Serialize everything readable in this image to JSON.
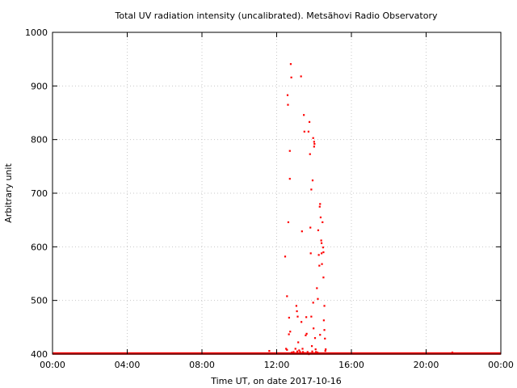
{
  "chart_data": {
    "type": "scatter",
    "title": "Total UV radiation intensity (uncalibrated). Metsähovi Radio Observatory",
    "xlabel": "Time UT, on date 2017-10-16",
    "ylabel": "Arbitrary unit",
    "x_unit": "hours UT",
    "xlim": [
      0,
      24
    ],
    "ylim": [
      400,
      1000
    ],
    "x_ticks": [
      0,
      4,
      8,
      12,
      16,
      20,
      24
    ],
    "x_tick_labels": [
      "00:00",
      "04:00",
      "08:00",
      "12:00",
      "16:00",
      "20:00",
      "00:00"
    ],
    "y_ticks": [
      400,
      500,
      600,
      700,
      800,
      900,
      1000
    ],
    "y_tick_labels": [
      "400",
      "500",
      "600",
      "700",
      "800",
      "900",
      "1000"
    ],
    "grid": true,
    "marker_color": "#ff0000",
    "baseline": {
      "x_start": 0,
      "x_end": 24,
      "y": 401
    },
    "points": [
      [
        11.6,
        406
      ],
      [
        12.45,
        582
      ],
      [
        12.5,
        410
      ],
      [
        12.55,
        508
      ],
      [
        12.55,
        408
      ],
      [
        12.58,
        883
      ],
      [
        12.6,
        865
      ],
      [
        12.62,
        646
      ],
      [
        12.65,
        437
      ],
      [
        12.66,
        468
      ],
      [
        12.7,
        779
      ],
      [
        12.7,
        727
      ],
      [
        12.72,
        442
      ],
      [
        12.75,
        941
      ],
      [
        12.78,
        916
      ],
      [
        12.8,
        403
      ],
      [
        12.9,
        404
      ],
      [
        13.0,
        410
      ],
      [
        13.05,
        490
      ],
      [
        13.08,
        480
      ],
      [
        13.1,
        405
      ],
      [
        13.12,
        470
      ],
      [
        13.15,
        422
      ],
      [
        13.2,
        407
      ],
      [
        13.25,
        404
      ],
      [
        13.3,
        918
      ],
      [
        13.32,
        460
      ],
      [
        13.35,
        629
      ],
      [
        13.38,
        410
      ],
      [
        13.4,
        404
      ],
      [
        13.45,
        846
      ],
      [
        13.48,
        815
      ],
      [
        13.5,
        402
      ],
      [
        13.55,
        435
      ],
      [
        13.58,
        469
      ],
      [
        13.6,
        438
      ],
      [
        13.65,
        404
      ],
      [
        13.7,
        815
      ],
      [
        13.72,
        400
      ],
      [
        13.75,
        833
      ],
      [
        13.78,
        773
      ],
      [
        13.8,
        636
      ],
      [
        13.82,
        588
      ],
      [
        13.85,
        707
      ],
      [
        13.85,
        470
      ],
      [
        13.88,
        415
      ],
      [
        13.9,
        405
      ],
      [
        13.92,
        724
      ],
      [
        13.95,
        803
      ],
      [
        13.95,
        496
      ],
      [
        13.97,
        448
      ],
      [
        14.0,
        796
      ],
      [
        14.0,
        787
      ],
      [
        14.02,
        792
      ],
      [
        14.05,
        430
      ],
      [
        14.08,
        409
      ],
      [
        14.1,
        404
      ],
      [
        14.15,
        523
      ],
      [
        14.18,
        403
      ],
      [
        14.2,
        503
      ],
      [
        14.22,
        631
      ],
      [
        14.25,
        585
      ],
      [
        14.28,
        565
      ],
      [
        14.3,
        675
      ],
      [
        14.32,
        680
      ],
      [
        14.32,
        436
      ],
      [
        14.35,
        655
      ],
      [
        14.38,
        612
      ],
      [
        14.4,
        607
      ],
      [
        14.4,
        588
      ],
      [
        14.42,
        568
      ],
      [
        14.45,
        646
      ],
      [
        14.48,
        599
      ],
      [
        14.5,
        590
      ],
      [
        14.5,
        543
      ],
      [
        14.52,
        463
      ],
      [
        14.55,
        490
      ],
      [
        14.55,
        445
      ],
      [
        14.58,
        429
      ],
      [
        14.6,
        406
      ],
      [
        14.62,
        409
      ],
      [
        21.4,
        403
      ]
    ]
  }
}
